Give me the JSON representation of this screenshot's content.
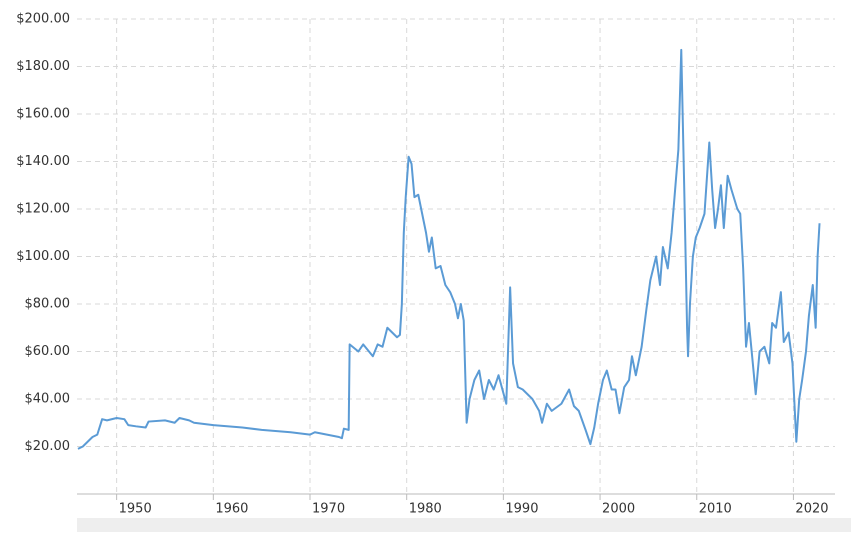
{
  "chart_data": {
    "type": "line",
    "color": "#5b9bd5",
    "grid": true,
    "xlim": [
      1945.9,
      2024.3
    ],
    "ylim": [
      0,
      200
    ],
    "xticks": [
      1950,
      1960,
      1970,
      1980,
      1990,
      2000,
      2010,
      2020
    ],
    "yticks": [
      {
        "value": 20,
        "label": "$20.00"
      },
      {
        "value": 40,
        "label": "$40.00"
      },
      {
        "value": 60,
        "label": "$60.00"
      },
      {
        "value": 80,
        "label": "$80.00"
      },
      {
        "value": 100,
        "label": "$100.00"
      },
      {
        "value": 120,
        "label": "$120.00"
      },
      {
        "value": 140,
        "label": "$140.00"
      },
      {
        "value": 160,
        "label": "$160.00"
      },
      {
        "value": 180,
        "label": "$180.00"
      },
      {
        "value": 200,
        "label": "$200.00"
      }
    ],
    "x": [
      1946,
      1946.5,
      1947,
      1947.5,
      1948,
      1948.5,
      1949,
      1950,
      1950.8,
      1951.2,
      1952,
      1953,
      1953.3,
      1955,
      1956,
      1956.5,
      1957.5,
      1958,
      1960,
      1963,
      1965,
      1968,
      1970,
      1970.5,
      1973,
      1973.3,
      1973.5,
      1974,
      1974.1,
      1975,
      1975.5,
      1976.5,
      1977,
      1977.5,
      1978,
      1978.5,
      1979,
      1979.3,
      1979.5,
      1979.7,
      1979.9,
      1980.2,
      1980.5,
      1980.8,
      1981.2,
      1981.5,
      1982,
      1982.3,
      1982.6,
      1983,
      1983.5,
      1984,
      1984.5,
      1985,
      1985.3,
      1985.6,
      1985.9,
      1986.2,
      1986.5,
      1987,
      1987.5,
      1988,
      1988.5,
      1989,
      1989.5,
      1990.3,
      1990.7,
      1991,
      1991.5,
      1992,
      1993,
      1993.7,
      1994,
      1994.5,
      1995,
      1996,
      1996.8,
      1997.3,
      1997.8,
      1998.5,
      1999,
      1999.4,
      1999.8,
      2000.3,
      2000.7,
      2001.2,
      2001.6,
      2002,
      2002.5,
      2003,
      2003.3,
      2003.7,
      2004.3,
      2004.8,
      2005.2,
      2005.8,
      2006.2,
      2006.5,
      2007,
      2007.4,
      2007.7,
      2008.1,
      2008.4,
      2008.7,
      2009,
      2009.1,
      2009.3,
      2009.6,
      2009.9,
      2010.3,
      2010.8,
      2011.3,
      2011.6,
      2011.9,
      2012.2,
      2012.5,
      2012.8,
      2013.2,
      2013.6,
      2014.2,
      2014.5,
      2014.8,
      2015.1,
      2015.4,
      2015.8,
      2016.1,
      2016.5,
      2017,
      2017.5,
      2017.8,
      2018.2,
      2018.7,
      2019,
      2019.5,
      2019.9,
      2020.3,
      2020.6,
      2020.9,
      2021.3,
      2021.6,
      2022,
      2022.3,
      2022.5,
      2022.7
    ],
    "values": [
      19,
      20,
      22,
      24,
      25,
      31.5,
      31,
      32,
      31.5,
      29,
      28.5,
      28,
      30.5,
      31,
      30,
      32,
      31,
      30,
      29,
      28,
      27,
      26,
      25,
      26,
      24,
      23.5,
      27.5,
      27,
      63,
      60,
      63,
      58,
      63,
      62,
      70,
      68,
      66,
      67,
      80,
      110,
      125,
      142,
      139,
      125,
      126,
      120,
      110,
      102,
      108,
      95,
      96,
      88,
      85,
      80,
      74,
      80,
      73,
      30,
      40,
      48,
      52,
      40,
      48,
      44,
      50,
      38,
      87,
      55,
      45,
      44,
      40,
      35,
      30,
      38,
      35,
      38,
      44,
      37,
      35,
      27,
      21,
      28,
      38,
      48,
      52,
      44,
      44,
      34,
      45,
      48,
      58,
      50,
      62,
      78,
      90,
      100,
      88,
      104,
      95,
      110,
      125,
      145,
      187,
      130,
      70,
      58,
      80,
      100,
      108,
      112,
      118,
      148,
      128,
      112,
      120,
      130,
      112,
      134,
      128,
      120,
      118,
      95,
      62,
      72,
      55,
      42,
      60,
      62,
      55,
      72,
      70,
      85,
      64,
      68,
      55,
      22,
      40,
      48,
      60,
      75,
      88,
      70,
      100,
      114
    ]
  }
}
